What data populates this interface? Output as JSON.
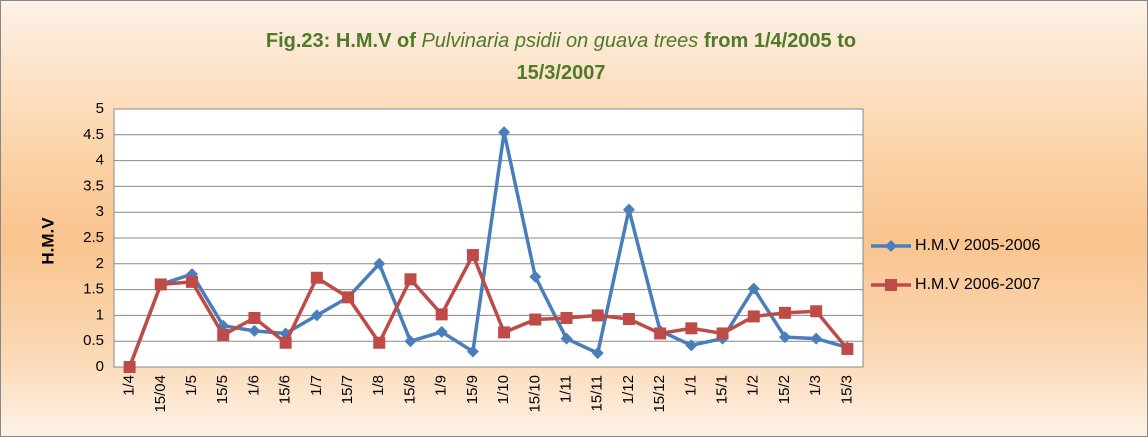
{
  "chart_data": {
    "type": "line",
    "title": [
      "Fig.23: H.M.V of",
      "Pulvinaria psidii on guava trees",
      "from 1/4/2005 to 15/3/2007"
    ],
    "y_label": "H.M.V",
    "categories": [
      "1/4",
      "15/04",
      "1/5",
      "15/5",
      "1/6",
      "15/6",
      "1/7",
      "15/7",
      "1/8",
      "15/8",
      "1/9",
      "15/9",
      "1/10",
      "15/10",
      "1/11",
      "15/11",
      "1/12",
      "15/12",
      "1/1",
      "15/1",
      "1/2",
      "15/2",
      "1/3",
      "15/3"
    ],
    "series": [
      {
        "name": "H.M.V 2005-2006",
        "color": "#4a7ebb",
        "marker": "diamond",
        "values": [
          0,
          1.6,
          1.8,
          0.8,
          0.7,
          0.65,
          1.0,
          1.35,
          2.0,
          0.5,
          0.68,
          0.3,
          4.55,
          1.75,
          0.55,
          0.27,
          3.05,
          0.7,
          0.42,
          0.55,
          1.52,
          0.58,
          0.55,
          0.38
        ]
      },
      {
        "name": "H.M.V 2006-2007",
        "color": "#be4b48",
        "marker": "square",
        "values": [
          0,
          1.6,
          1.65,
          0.62,
          0.95,
          0.47,
          1.73,
          1.35,
          0.47,
          1.7,
          1.02,
          2.17,
          0.67,
          0.92,
          0.95,
          1.0,
          0.93,
          0.65,
          0.75,
          0.65,
          0.98,
          1.05,
          1.08,
          0.35
        ]
      }
    ],
    "ylim": [
      0,
      5
    ],
    "yticks": [
      0,
      0.5,
      1,
      1.5,
      2,
      2.5,
      3,
      3.5,
      4,
      4.5,
      5
    ],
    "grid": true,
    "legend": "right"
  }
}
